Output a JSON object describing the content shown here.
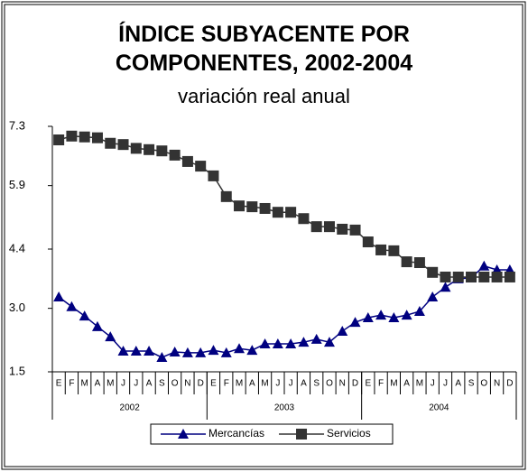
{
  "chart_data": {
    "type": "line",
    "title": "ÍNDICE SUBYACENTE POR COMPONENTES, 2002-2004",
    "subtitle": "variación real anual",
    "categories": [
      "E",
      "F",
      "M",
      "A",
      "M",
      "J",
      "J",
      "A",
      "S",
      "O",
      "N",
      "D",
      "E",
      "F",
      "M",
      "A",
      "M",
      "J",
      "J",
      "A",
      "S",
      "O",
      "N",
      "D",
      "E",
      "F",
      "M",
      "A",
      "M",
      "J",
      "J",
      "A",
      "S",
      "O",
      "N",
      "D"
    ],
    "category_groups": [
      "2002",
      "2003",
      "2004"
    ],
    "series": [
      {
        "name": "Mercancías",
        "color": "#000080",
        "marker": "triangle",
        "values": [
          3.27,
          3.04,
          2.82,
          2.57,
          2.33,
          1.99,
          1.99,
          1.99,
          1.84,
          1.97,
          1.95,
          1.95,
          2.01,
          1.95,
          2.05,
          2.01,
          2.16,
          2.16,
          2.16,
          2.2,
          2.27,
          2.2,
          2.46,
          2.67,
          2.78,
          2.84,
          2.78,
          2.84,
          2.93,
          3.27,
          3.5,
          3.7,
          3.72,
          4.0,
          3.91,
          3.91
        ]
      },
      {
        "name": "Servicios",
        "color": "#333333",
        "marker": "square",
        "values": [
          6.98,
          7.07,
          7.05,
          7.03,
          6.9,
          6.87,
          6.78,
          6.75,
          6.72,
          6.62,
          6.47,
          6.36,
          6.13,
          5.64,
          5.42,
          5.4,
          5.36,
          5.27,
          5.27,
          5.12,
          4.93,
          4.93,
          4.87,
          4.85,
          4.57,
          4.38,
          4.36,
          4.1,
          4.08,
          3.85,
          3.74,
          3.74,
          3.74,
          3.74,
          3.74,
          3.74
        ]
      }
    ],
    "ylim": [
      1.5,
      7.3
    ],
    "yticks": [
      1.5,
      {
        "value": 3,
        "label": "3.0"
      },
      4.4,
      5.9,
      7.3
    ],
    "grid": false,
    "legend": "bottom"
  }
}
